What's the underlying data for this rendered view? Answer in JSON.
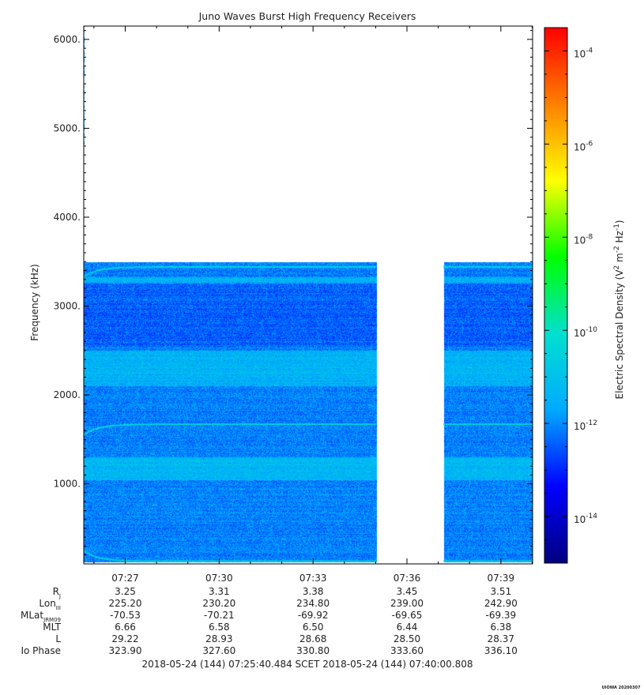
{
  "chart_data": {
    "type": "heatmap",
    "title": "Juno Waves Burst High Frequency Receivers",
    "ylabel": "Frequency (kHz)",
    "ylim": [
      100,
      6150
    ],
    "y_ticks": [
      1000,
      2000,
      3000,
      4000,
      5000,
      6000
    ],
    "y_tick_labels": [
      "1000.",
      "2000.",
      "3000.",
      "4000.",
      "5000.",
      "6000."
    ],
    "x_range_minutes": [
      "07:25:40.484",
      "07:40:00.808"
    ],
    "x_ticks": [
      "07:27",
      "07:30",
      "07:33",
      "07:36",
      "07:39"
    ],
    "data_frequency_range_khz": [
      120,
      3500
    ],
    "data_gap": [
      "07:35:01",
      "07:37:10"
    ],
    "colorbar": {
      "label": "Electric Spectral Density (V² m⁻² Hz⁻¹)",
      "label_base": "Electric Spectral Density (V",
      "label_exp1": "2",
      "label_mid": " m",
      "label_exp2": "-2",
      "label_mid2": " Hz",
      "label_exp3": "-1",
      "label_end": ")",
      "log_range": [
        -15,
        -3.5
      ],
      "tick_exponents": [
        "-14",
        "-12",
        "-10",
        "-8",
        "-6",
        "-4"
      ],
      "tick_base": "10",
      "colormap": [
        "#000080",
        "#0000ff",
        "#00aaff",
        "#00e0d0",
        "#00ff00",
        "#ffff00",
        "#ff8000",
        "#ff0000"
      ]
    },
    "bands": [
      {
        "description_freq_khz": [
          1050,
          1300
        ],
        "level": -11.3
      },
      {
        "description_freq_khz": [
          2100,
          2500
        ],
        "level": -11.4
      },
      {
        "description_freq_khz": [
          3270,
          3330
        ],
        "level": -11.5
      }
    ],
    "emission_lines": [
      {
        "start_khz": 1550,
        "end_khz": 1670,
        "level": -10.3
      },
      {
        "start_khz": 3330,
        "end_khz": 3440,
        "level": -10.5
      },
      {
        "start_khz": 250,
        "end_khz": 130,
        "level": -10.5
      }
    ]
  },
  "ephemeris": {
    "rows": [
      {
        "label": "R",
        "sub": "J",
        "values": [
          "3.25",
          "3.31",
          "3.38",
          "3.45",
          "3.51"
        ]
      },
      {
        "label": "Lon",
        "sub": "III",
        "values": [
          "225.20",
          "230.20",
          "234.80",
          "239.00",
          "242.90"
        ]
      },
      {
        "label": "MLat",
        "sub": "JRM09",
        "values": [
          "-70.53",
          "-70.21",
          "-69.92",
          "-69.65",
          "-69.39"
        ]
      },
      {
        "label": "MLT",
        "sub": "",
        "values": [
          "6.66",
          "6.58",
          "6.50",
          "6.44",
          "6.38"
        ]
      },
      {
        "label": "L",
        "sub": "",
        "values": [
          "29.22",
          "28.93",
          "28.68",
          "28.50",
          "28.37"
        ]
      },
      {
        "label": "Io Phase",
        "sub": "",
        "values": [
          "323.90",
          "327.60",
          "330.80",
          "333.60",
          "336.10"
        ]
      }
    ]
  },
  "footer": {
    "time_range": "2018-05-24 (144) 07:25:40.484    SCET    2018-05-24 (144) 07:40:00.808",
    "stamp": "UIOWA 20200307"
  }
}
